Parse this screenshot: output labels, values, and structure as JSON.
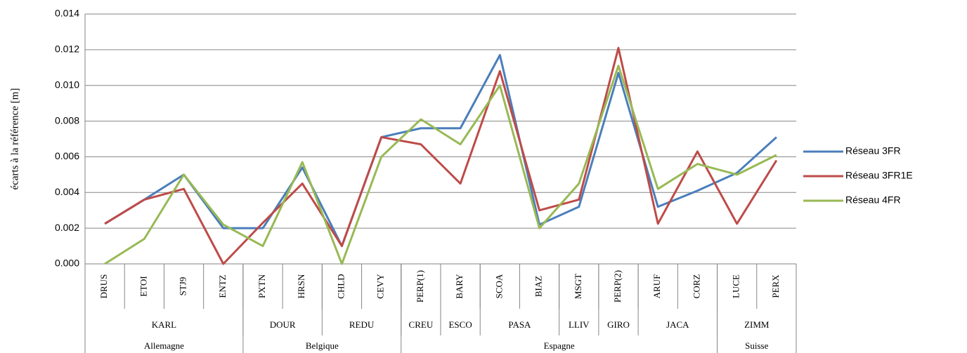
{
  "chart_data": {
    "type": "line",
    "y_label": "écarts à la référence [m]",
    "categories": [
      "DRUS",
      "ETOI",
      "STJ9",
      "ENTZ",
      "PXTN",
      "HRSN",
      "CHLD",
      "CEVY",
      "PERP(1)",
      "BARY",
      "SCOA",
      "BIAZ",
      "MSGT",
      "PERP(2)",
      "ARUF",
      "CORZ",
      "LUCE",
      "PERX"
    ],
    "groups": [
      {
        "name": "KARL",
        "count": 4
      },
      {
        "name": "DOUR",
        "count": 2
      },
      {
        "name": "REDU",
        "count": 2
      },
      {
        "name": "CREU",
        "count": 1
      },
      {
        "name": "ESCO",
        "count": 1
      },
      {
        "name": "PASA",
        "count": 2
      },
      {
        "name": "LLIV",
        "count": 1
      },
      {
        "name": "GIRO",
        "count": 1
      },
      {
        "name": "JACA",
        "count": 2
      },
      {
        "name": "ZIMM",
        "count": 2
      }
    ],
    "countries": [
      {
        "name": "Allemagne",
        "count": 4
      },
      {
        "name": "Belgique",
        "count": 4
      },
      {
        "name": "Espagne",
        "count": 8
      },
      {
        "name": "Suisse",
        "count": 2
      }
    ],
    "series": [
      {
        "name": "Réseau 3FR",
        "color": "#4a7ebb",
        "values": [
          0.00225,
          0.0036,
          0.005,
          0.002,
          0.002,
          0.0054,
          0.001,
          0.0071,
          0.0076,
          0.0076,
          0.0117,
          0.0022,
          0.0032,
          0.0107,
          0.0032,
          0.0041,
          0.0051,
          0.0071
        ]
      },
      {
        "name": "Réseau 3FR1E",
        "color": "#be4b48",
        "values": [
          0.00225,
          0.0036,
          0.0042,
          0,
          0.0023,
          0.0045,
          0.001,
          0.0071,
          0.0067,
          0.0045,
          0.0108,
          0.003,
          0.0036,
          0.0121,
          0.00225,
          0.0063,
          0.00225,
          0.0058
        ]
      },
      {
        "name": "Réseau 4FR",
        "color": "#98b954",
        "values": [
          0,
          0.0014,
          0.005,
          0.0022,
          0.001,
          0.0057,
          0,
          0.006,
          0.0081,
          0.0067,
          0.01,
          0.002,
          0.0045,
          0.0111,
          0.0042,
          0.0056,
          0.005,
          0.0061
        ]
      }
    ],
    "ylim": [
      0,
      0.014
    ],
    "yticks": [
      {
        "value": 0,
        "label": "0.000"
      },
      0.002,
      0.004,
      0.006,
      0.008,
      {
        "value": 0.01,
        "label": "0.010"
      },
      0.012,
      0.014
    ],
    "grid": true,
    "legend": "right"
  }
}
